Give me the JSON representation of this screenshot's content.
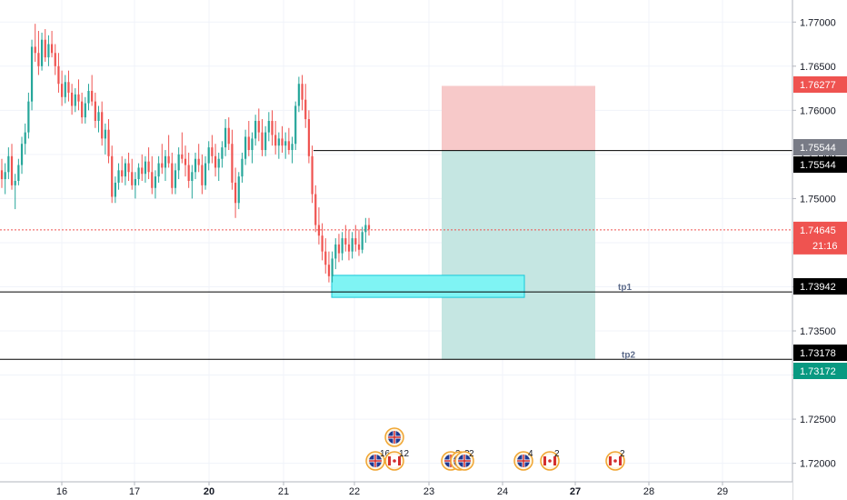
{
  "chart_data": {
    "type": "candlestick",
    "symbol_context": "GBPCAD",
    "price_axis": {
      "ticks": [
        "1.77000",
        "1.76500",
        "1.76000",
        "1.75500",
        "1.75000",
        "1.74500",
        "1.74000",
        "1.73500",
        "1.73000",
        "1.72500",
        "1.72000"
      ],
      "ylim": [
        1.7179,
        1.7725
      ]
    },
    "time_axis": {
      "ticks": [
        {
          "label": "16",
          "bold": false
        },
        {
          "label": "17",
          "bold": false
        },
        {
          "label": "20",
          "bold": true
        },
        {
          "label": "21",
          "bold": false
        },
        {
          "label": "22",
          "bold": false
        },
        {
          "label": "23",
          "bold": false
        },
        {
          "label": "24",
          "bold": false
        },
        {
          "label": "27",
          "bold": true
        },
        {
          "label": "28",
          "bold": false
        },
        {
          "label": "29",
          "bold": false
        }
      ]
    },
    "current_price": {
      "value": "1.74645",
      "countdown": "21:16",
      "color": "#ef5350"
    },
    "price_labels": [
      {
        "value": "1.76277",
        "bg": "#ef5350",
        "fg": "#ffffff"
      },
      {
        "value": "1.75544",
        "bg": "#787b86",
        "fg": "#ffffff"
      },
      {
        "value": "1.75544",
        "bg": "#000000",
        "fg": "#ffffff"
      },
      {
        "value": "1.73942",
        "bg": "#000000",
        "fg": "#ffffff"
      },
      {
        "value": "1.73178",
        "bg": "#000000",
        "fg": "#ffffff"
      },
      {
        "value": "1.73172",
        "bg": "#089981",
        "fg": "#ffffff"
      }
    ],
    "horizontal_lines": [
      {
        "price": 1.75544,
        "color": "#000000"
      },
      {
        "price": 1.73942,
        "color": "#000000",
        "label": "tp1"
      },
      {
        "price": 1.73178,
        "color": "#000000",
        "label": "tp2"
      }
    ],
    "position": {
      "entry": 1.75544,
      "stop": 1.76277,
      "target": 1.73172,
      "risk_color": "#f7c9c9",
      "reward_color": "#c5e6e2"
    },
    "demand_zone": {
      "top": 1.7413,
      "bottom": 1.7388,
      "color": "#7ff4f4",
      "border": "#17c8d8"
    },
    "events": [
      {
        "flag": "uk",
        "count": "16"
      },
      {
        "flag": "ca",
        "count": "12"
      },
      {
        "flag": "uk",
        "count": ""
      },
      {
        "flag": "uk",
        "count": "3"
      },
      {
        "flag": "uk",
        "count": "3"
      },
      {
        "flag": "uk",
        "count": "2"
      },
      {
        "flag": "uk",
        "count": "4"
      },
      {
        "flag": "ca",
        "count": "2"
      },
      {
        "flag": "ca",
        "count": "2"
      }
    ],
    "candle_colors": {
      "up": "#26a69a",
      "down": "#ef5350"
    },
    "candles": [
      [
        1.7532,
        1.7545,
        1.7512,
        1.7522
      ],
      [
        1.7522,
        1.754,
        1.7505,
        1.753
      ],
      [
        1.753,
        1.7558,
        1.7522,
        1.7548
      ],
      [
        1.7548,
        1.7562,
        1.751,
        1.7515
      ],
      [
        1.7515,
        1.7528,
        1.7488,
        1.752
      ],
      [
        1.752,
        1.7545,
        1.7515,
        1.7538
      ],
      [
        1.7538,
        1.757,
        1.7528,
        1.7562
      ],
      [
        1.7562,
        1.7585,
        1.755,
        1.7575
      ],
      [
        1.7575,
        1.762,
        1.7568,
        1.761
      ],
      [
        1.761,
        1.768,
        1.76,
        1.7672
      ],
      [
        1.7672,
        1.7698,
        1.7655,
        1.7665
      ],
      [
        1.7665,
        1.769,
        1.764,
        1.765
      ],
      [
        1.765,
        1.7688,
        1.7645,
        1.768
      ],
      [
        1.768,
        1.7692,
        1.7655,
        1.766
      ],
      [
        1.766,
        1.7685,
        1.765,
        1.7675
      ],
      [
        1.7675,
        1.769,
        1.766,
        1.7665
      ],
      [
        1.7665,
        1.7675,
        1.764,
        1.765
      ],
      [
        1.765,
        1.7665,
        1.762,
        1.763
      ],
      [
        1.763,
        1.7645,
        1.7605,
        1.7615
      ],
      [
        1.7615,
        1.764,
        1.7608,
        1.7632
      ],
      [
        1.7632,
        1.7645,
        1.761,
        1.762
      ],
      [
        1.762,
        1.763,
        1.7595,
        1.7605
      ],
      [
        1.7605,
        1.7625,
        1.7598,
        1.7618
      ],
      [
        1.7618,
        1.7635,
        1.76,
        1.761
      ],
      [
        1.761,
        1.762,
        1.7585,
        1.7592
      ],
      [
        1.7592,
        1.7615,
        1.7585,
        1.7608
      ],
      [
        1.7608,
        1.763,
        1.76,
        1.7622
      ],
      [
        1.7622,
        1.764,
        1.7605,
        1.761
      ],
      [
        1.761,
        1.762,
        1.758,
        1.7588
      ],
      [
        1.7588,
        1.7605,
        1.7575,
        1.7598
      ],
      [
        1.7598,
        1.761,
        1.756,
        1.7568
      ],
      [
        1.7568,
        1.7585,
        1.755,
        1.7578
      ],
      [
        1.7578,
        1.759,
        1.754,
        1.7548
      ],
      [
        1.7548,
        1.756,
        1.7495,
        1.7502
      ],
      [
        1.7502,
        1.7525,
        1.7495,
        1.7518
      ],
      [
        1.7518,
        1.754,
        1.751,
        1.7532
      ],
      [
        1.7532,
        1.7548,
        1.7518,
        1.7525
      ],
      [
        1.7525,
        1.7545,
        1.7515,
        1.754
      ],
      [
        1.754,
        1.7552,
        1.752,
        1.753
      ],
      [
        1.753,
        1.7545,
        1.751,
        1.7515
      ],
      [
        1.7515,
        1.753,
        1.75,
        1.7522
      ],
      [
        1.7522,
        1.754,
        1.7515,
        1.7535
      ],
      [
        1.7535,
        1.755,
        1.752,
        1.7528
      ],
      [
        1.7528,
        1.7548,
        1.7518,
        1.7542
      ],
      [
        1.7542,
        1.7558,
        1.7522,
        1.753
      ],
      [
        1.753,
        1.7548,
        1.7505,
        1.7512
      ],
      [
        1.7512,
        1.7532,
        1.75,
        1.7525
      ],
      [
        1.7525,
        1.7548,
        1.7518,
        1.754
      ],
      [
        1.754,
        1.7562,
        1.7528,
        1.7535
      ],
      [
        1.7535,
        1.7555,
        1.752,
        1.7548
      ],
      [
        1.7548,
        1.7572,
        1.7535,
        1.754
      ],
      [
        1.754,
        1.7552,
        1.7505,
        1.7512
      ],
      [
        1.7512,
        1.754,
        1.7505,
        1.7532
      ],
      [
        1.7532,
        1.7558,
        1.7522,
        1.755
      ],
      [
        1.755,
        1.7575,
        1.754,
        1.7545
      ],
      [
        1.7545,
        1.756,
        1.7525,
        1.7538
      ],
      [
        1.7538,
        1.7552,
        1.7512,
        1.752
      ],
      [
        1.752,
        1.7538,
        1.75,
        1.753
      ],
      [
        1.753,
        1.7552,
        1.7522,
        1.7545
      ],
      [
        1.7545,
        1.7562,
        1.753,
        1.7538
      ],
      [
        1.7538,
        1.755,
        1.7505,
        1.7515
      ],
      [
        1.7515,
        1.7548,
        1.751,
        1.754
      ],
      [
        1.754,
        1.7565,
        1.7532,
        1.7558
      ],
      [
        1.7558,
        1.7572,
        1.754,
        1.7548
      ],
      [
        1.7548,
        1.7562,
        1.7525,
        1.7535
      ],
      [
        1.7535,
        1.7552,
        1.752,
        1.7545
      ],
      [
        1.7545,
        1.7565,
        1.7535,
        1.7558
      ],
      [
        1.7558,
        1.759,
        1.7548,
        1.758
      ],
      [
        1.758,
        1.7592,
        1.7555,
        1.7562
      ],
      [
        1.7562,
        1.7578,
        1.751,
        1.7518
      ],
      [
        1.7518,
        1.7535,
        1.7478,
        1.7495
      ],
      [
        1.7495,
        1.753,
        1.7488,
        1.7525
      ],
      [
        1.7525,
        1.7552,
        1.7518,
        1.7545
      ],
      [
        1.7545,
        1.7578,
        1.7538,
        1.757
      ],
      [
        1.757,
        1.7588,
        1.7548,
        1.7555
      ],
      [
        1.7555,
        1.7575,
        1.754,
        1.7568
      ],
      [
        1.7568,
        1.7595,
        1.756,
        1.7588
      ],
      [
        1.7588,
        1.7602,
        1.7565,
        1.7575
      ],
      [
        1.7575,
        1.759,
        1.7548,
        1.7555
      ],
      [
        1.7555,
        1.7582,
        1.7548,
        1.7575
      ],
      [
        1.7575,
        1.7598,
        1.7565,
        1.7588
      ],
      [
        1.7588,
        1.76,
        1.756,
        1.7572
      ],
      [
        1.7572,
        1.7588,
        1.755,
        1.756
      ],
      [
        1.756,
        1.7575,
        1.7545,
        1.7568
      ],
      [
        1.7568,
        1.7582,
        1.7552,
        1.756
      ],
      [
        1.756,
        1.7575,
        1.7545,
        1.7565
      ],
      [
        1.7565,
        1.758,
        1.755,
        1.7555
      ],
      [
        1.7555,
        1.757,
        1.754,
        1.7562
      ],
      [
        1.7562,
        1.761,
        1.7555,
        1.7605
      ],
      [
        1.7605,
        1.7638,
        1.7598,
        1.763
      ],
      [
        1.763,
        1.764,
        1.76,
        1.7612
      ],
      [
        1.7612,
        1.763,
        1.758,
        1.759
      ],
      [
        1.759,
        1.76,
        1.754,
        1.7548
      ],
      [
        1.7548,
        1.756,
        1.7495,
        1.7505
      ],
      [
        1.7505,
        1.7515,
        1.7462,
        1.747
      ],
      [
        1.747,
        1.749,
        1.7448,
        1.7458
      ],
      [
        1.7458,
        1.7472,
        1.743,
        1.744
      ],
      [
        1.744,
        1.7455,
        1.7415,
        1.7425
      ],
      [
        1.7425,
        1.744,
        1.7405,
        1.7412
      ],
      [
        1.7412,
        1.744,
        1.7405,
        1.7432
      ],
      [
        1.7432,
        1.7455,
        1.742,
        1.7448
      ],
      [
        1.7448,
        1.746,
        1.7428,
        1.7438
      ],
      [
        1.7438,
        1.7462,
        1.743,
        1.7455
      ],
      [
        1.7455,
        1.747,
        1.744,
        1.7448
      ],
      [
        1.7448,
        1.7465,
        1.743,
        1.744
      ],
      [
        1.744,
        1.7462,
        1.7432,
        1.7455
      ],
      [
        1.7455,
        1.747,
        1.744,
        1.7448
      ],
      [
        1.7448,
        1.7465,
        1.7435,
        1.7442
      ],
      [
        1.7442,
        1.7468,
        1.7438,
        1.7462
      ],
      [
        1.7462,
        1.7478,
        1.745,
        1.747
      ],
      [
        1.747,
        1.7478,
        1.7458,
        1.7465
      ]
    ]
  }
}
